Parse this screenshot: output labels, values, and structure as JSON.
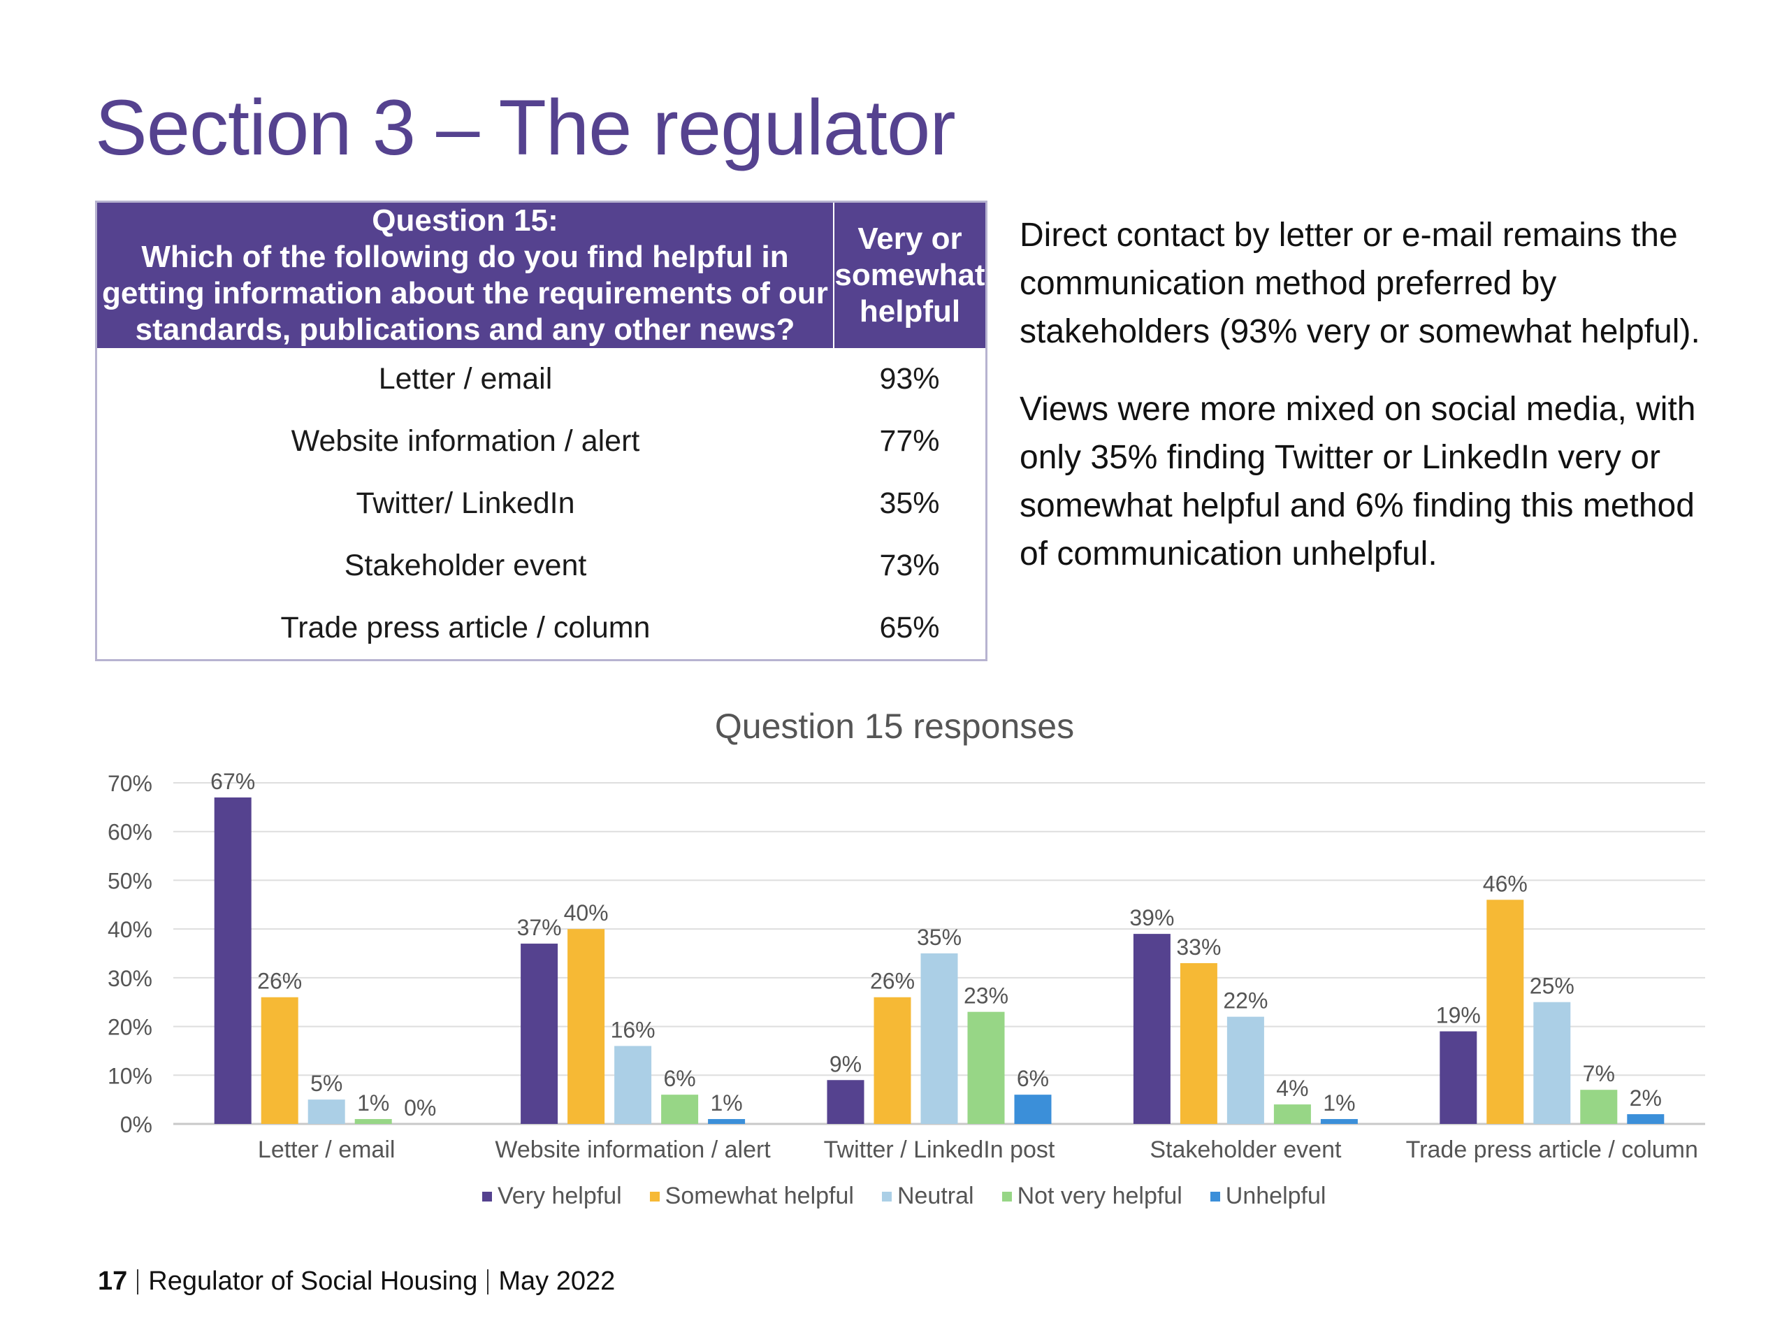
{
  "header": {
    "title": "Section 3 – The regulator"
  },
  "question_table": {
    "question_heading": "Question 15:\nWhich of the following do you find helpful in getting information about the requirements of our standards, publications and any other news?",
    "column_heading": "Very or somewhat helpful",
    "rows": [
      {
        "label": "Letter / email",
        "value": "93%"
      },
      {
        "label": "Website information / alert",
        "value": "77%"
      },
      {
        "label": "Twitter/ LinkedIn",
        "value": "35%"
      },
      {
        "label": "Stakeholder event",
        "value": "73%"
      },
      {
        "label": "Trade press article / column",
        "value": "65%"
      }
    ]
  },
  "summary": {
    "paragraph1": "Direct contact by letter or e-mail remains the communication method preferred by stakeholders (93% very or somewhat helpful).",
    "paragraph2": "Views were more mixed on social media, with only 35% finding Twitter or LinkedIn very or somewhat helpful and 6% finding this method of communication unhelpful."
  },
  "chart_data": {
    "type": "bar",
    "title": "Question 15 responses",
    "categories": [
      "Letter / email",
      "Website information / alert",
      "Twitter / LinkedIn post",
      "Stakeholder event",
      "Trade press article / column"
    ],
    "series": [
      {
        "name": "Very helpful",
        "color": "#55428f",
        "values": [
          67,
          37,
          9,
          39,
          19
        ]
      },
      {
        "name": "Somewhat helpful",
        "color": "#f6b935",
        "values": [
          26,
          40,
          26,
          33,
          46
        ]
      },
      {
        "name": "Neutral",
        "color": "#abcfe6",
        "values": [
          5,
          16,
          35,
          22,
          25
        ]
      },
      {
        "name": "Not very helpful",
        "color": "#97d686",
        "values": [
          1,
          6,
          23,
          4,
          7
        ]
      },
      {
        "name": "Unhelpful",
        "color": "#3b8fd9",
        "values": [
          0,
          1,
          6,
          1,
          2
        ]
      }
    ],
    "ylim": [
      0,
      70
    ],
    "yticks": [
      "0%",
      "10%",
      "20%",
      "30%",
      "40%",
      "50%",
      "60%",
      "70%"
    ],
    "value_suffix": "%",
    "grid": true,
    "legend_position": "bottom"
  },
  "footer": {
    "page": "17",
    "org": "Regulator of Social Housing",
    "date": "May 2022"
  }
}
